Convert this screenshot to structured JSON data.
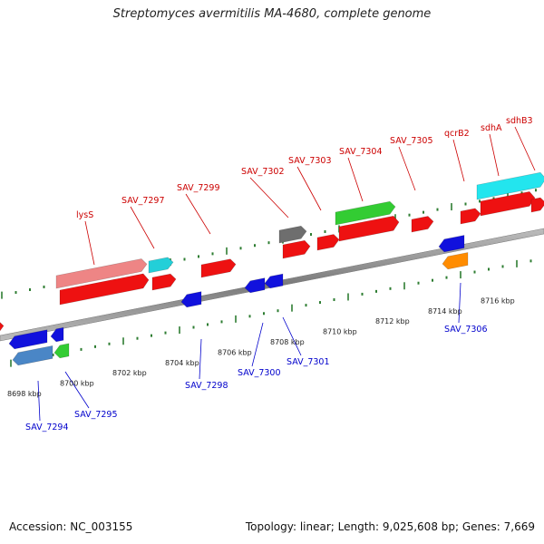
{
  "title": "Streptomyces avermitilis MA-4680, complete genome",
  "footer": {
    "accession": "Accession: NC_003155",
    "summary": "Topology: linear; Length: 9,025,608 bp; Genes: 7,669"
  },
  "colors": {
    "forward_label": "#cc0000",
    "reverse_label": "#0000cc",
    "backbone": "#8a8a8a",
    "tick": "#2e7d32"
  },
  "scale_labels": [
    "8698 kbp",
    "8700 kbp",
    "8702 kbp",
    "8704 kbp",
    "8706 kbp",
    "8708 kbp",
    "8710 kbp",
    "8712 kbp",
    "8714 kbp",
    "8716 kbp"
  ],
  "forward_labels": [
    "lysS",
    "SAV_7297",
    "SAV_7299",
    "SAV_7302",
    "SAV_7303",
    "SAV_7304",
    "SAV_7305",
    "qcrB2",
    "sdhA",
    "sdhB3"
  ],
  "reverse_labels": [
    "SAV_7294",
    "SAV_7295",
    "SAV_7298",
    "SAV_7300",
    "SAV_7301",
    "SAV_7306"
  ]
}
